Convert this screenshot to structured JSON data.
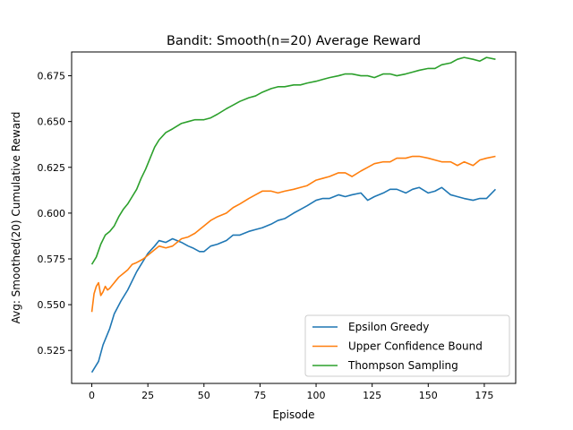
{
  "chart_data": {
    "type": "line",
    "title": "Bandit: Smooth(n=20) Average Reward",
    "xlabel": "Episode",
    "ylabel": "Avg: Smoothed(20) Cumulative Reward",
    "xlim": [
      -9,
      189
    ],
    "ylim": [
      0.507,
      0.688
    ],
    "xticks": [
      0,
      25,
      50,
      75,
      100,
      125,
      150,
      175
    ],
    "xtick_labels": [
      "0",
      "25",
      "50",
      "75",
      "100",
      "125",
      "150",
      "175"
    ],
    "yticks": [
      0.525,
      0.55,
      0.575,
      0.6,
      0.625,
      0.65,
      0.675
    ],
    "ytick_labels": [
      "0.525",
      "0.550",
      "0.575",
      "0.600",
      "0.625",
      "0.650",
      "0.675"
    ],
    "grid": false,
    "legend_position": "lower-right",
    "series": [
      {
        "name": "Epsilon Greedy",
        "color": "#1f77b4",
        "points": [
          [
            0,
            0.513
          ],
          [
            3,
            0.519
          ],
          [
            5,
            0.528
          ],
          [
            8,
            0.537
          ],
          [
            10,
            0.545
          ],
          [
            13,
            0.552
          ],
          [
            16,
            0.558
          ],
          [
            20,
            0.568
          ],
          [
            25,
            0.578
          ],
          [
            28,
            0.582
          ],
          [
            30,
            0.585
          ],
          [
            33,
            0.584
          ],
          [
            36,
            0.586
          ],
          [
            40,
            0.584
          ],
          [
            43,
            0.582
          ],
          [
            45,
            0.581
          ],
          [
            48,
            0.579
          ],
          [
            50,
            0.579
          ],
          [
            53,
            0.582
          ],
          [
            56,
            0.583
          ],
          [
            60,
            0.585
          ],
          [
            63,
            0.588
          ],
          [
            66,
            0.588
          ],
          [
            70,
            0.59
          ],
          [
            73,
            0.591
          ],
          [
            76,
            0.592
          ],
          [
            80,
            0.594
          ],
          [
            83,
            0.596
          ],
          [
            86,
            0.597
          ],
          [
            90,
            0.6
          ],
          [
            93,
            0.602
          ],
          [
            96,
            0.604
          ],
          [
            100,
            0.607
          ],
          [
            103,
            0.608
          ],
          [
            106,
            0.608
          ],
          [
            110,
            0.61
          ],
          [
            113,
            0.609
          ],
          [
            116,
            0.61
          ],
          [
            120,
            0.611
          ],
          [
            123,
            0.607
          ],
          [
            126,
            0.609
          ],
          [
            130,
            0.611
          ],
          [
            133,
            0.613
          ],
          [
            136,
            0.613
          ],
          [
            140,
            0.611
          ],
          [
            143,
            0.613
          ],
          [
            146,
            0.614
          ],
          [
            150,
            0.611
          ],
          [
            153,
            0.612
          ],
          [
            156,
            0.614
          ],
          [
            160,
            0.61
          ],
          [
            163,
            0.609
          ],
          [
            166,
            0.608
          ],
          [
            170,
            0.607
          ],
          [
            173,
            0.608
          ],
          [
            176,
            0.608
          ],
          [
            180,
            0.613
          ]
        ]
      },
      {
        "name": "Upper Confidence Bound",
        "color": "#ff7f0e",
        "points": [
          [
            0,
            0.546
          ],
          [
            1,
            0.556
          ],
          [
            2,
            0.56
          ],
          [
            3,
            0.562
          ],
          [
            4,
            0.555
          ],
          [
            5,
            0.557
          ],
          [
            6,
            0.56
          ],
          [
            7,
            0.558
          ],
          [
            8,
            0.559
          ],
          [
            10,
            0.562
          ],
          [
            12,
            0.565
          ],
          [
            14,
            0.567
          ],
          [
            16,
            0.569
          ],
          [
            18,
            0.572
          ],
          [
            20,
            0.573
          ],
          [
            23,
            0.575
          ],
          [
            25,
            0.577
          ],
          [
            28,
            0.58
          ],
          [
            30,
            0.582
          ],
          [
            33,
            0.581
          ],
          [
            36,
            0.582
          ],
          [
            40,
            0.586
          ],
          [
            43,
            0.587
          ],
          [
            46,
            0.589
          ],
          [
            50,
            0.593
          ],
          [
            53,
            0.596
          ],
          [
            56,
            0.598
          ],
          [
            60,
            0.6
          ],
          [
            63,
            0.603
          ],
          [
            66,
            0.605
          ],
          [
            70,
            0.608
          ],
          [
            73,
            0.61
          ],
          [
            76,
            0.612
          ],
          [
            80,
            0.612
          ],
          [
            83,
            0.611
          ],
          [
            86,
            0.612
          ],
          [
            90,
            0.613
          ],
          [
            93,
            0.614
          ],
          [
            96,
            0.615
          ],
          [
            100,
            0.618
          ],
          [
            103,
            0.619
          ],
          [
            106,
            0.62
          ],
          [
            110,
            0.622
          ],
          [
            113,
            0.622
          ],
          [
            116,
            0.62
          ],
          [
            120,
            0.623
          ],
          [
            123,
            0.625
          ],
          [
            126,
            0.627
          ],
          [
            130,
            0.628
          ],
          [
            133,
            0.628
          ],
          [
            136,
            0.63
          ],
          [
            140,
            0.63
          ],
          [
            143,
            0.631
          ],
          [
            146,
            0.631
          ],
          [
            150,
            0.63
          ],
          [
            153,
            0.629
          ],
          [
            156,
            0.628
          ],
          [
            160,
            0.628
          ],
          [
            163,
            0.626
          ],
          [
            166,
            0.628
          ],
          [
            170,
            0.626
          ],
          [
            173,
            0.629
          ],
          [
            176,
            0.63
          ],
          [
            180,
            0.631
          ]
        ]
      },
      {
        "name": "Thompson Sampling",
        "color": "#2ca02c",
        "points": [
          [
            0,
            0.572
          ],
          [
            2,
            0.576
          ],
          [
            4,
            0.583
          ],
          [
            6,
            0.588
          ],
          [
            8,
            0.59
          ],
          [
            10,
            0.593
          ],
          [
            12,
            0.598
          ],
          [
            14,
            0.602
          ],
          [
            16,
            0.605
          ],
          [
            18,
            0.609
          ],
          [
            20,
            0.613
          ],
          [
            22,
            0.619
          ],
          [
            24,
            0.624
          ],
          [
            26,
            0.63
          ],
          [
            28,
            0.636
          ],
          [
            30,
            0.64
          ],
          [
            33,
            0.644
          ],
          [
            36,
            0.646
          ],
          [
            40,
            0.649
          ],
          [
            43,
            0.65
          ],
          [
            46,
            0.651
          ],
          [
            50,
            0.651
          ],
          [
            53,
            0.652
          ],
          [
            56,
            0.654
          ],
          [
            60,
            0.657
          ],
          [
            63,
            0.659
          ],
          [
            66,
            0.661
          ],
          [
            70,
            0.663
          ],
          [
            73,
            0.664
          ],
          [
            76,
            0.666
          ],
          [
            80,
            0.668
          ],
          [
            83,
            0.669
          ],
          [
            86,
            0.669
          ],
          [
            90,
            0.67
          ],
          [
            93,
            0.67
          ],
          [
            96,
            0.671
          ],
          [
            100,
            0.672
          ],
          [
            103,
            0.673
          ],
          [
            106,
            0.674
          ],
          [
            110,
            0.675
          ],
          [
            113,
            0.676
          ],
          [
            116,
            0.676
          ],
          [
            120,
            0.675
          ],
          [
            123,
            0.675
          ],
          [
            126,
            0.674
          ],
          [
            130,
            0.676
          ],
          [
            133,
            0.676
          ],
          [
            136,
            0.675
          ],
          [
            140,
            0.676
          ],
          [
            143,
            0.677
          ],
          [
            146,
            0.678
          ],
          [
            150,
            0.679
          ],
          [
            153,
            0.679
          ],
          [
            156,
            0.681
          ],
          [
            160,
            0.682
          ],
          [
            163,
            0.684
          ],
          [
            166,
            0.685
          ],
          [
            170,
            0.684
          ],
          [
            173,
            0.683
          ],
          [
            176,
            0.685
          ],
          [
            180,
            0.684
          ]
        ]
      }
    ]
  }
}
